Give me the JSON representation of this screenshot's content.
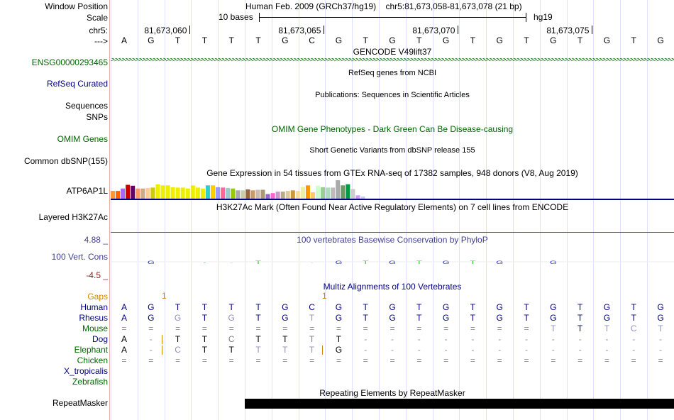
{
  "header": {
    "window_position_label": "Window Position",
    "window_position_value": "Human Feb. 2009 (GRCh37/hg19)    chr5:81,673,058-81,673,078 (21 bp)",
    "scale_label": "Scale",
    "scale_value": "10 bases",
    "scale_db": "hg19",
    "chrom_label": "chr5:",
    "ticks": [
      "81,673,060",
      "81,673,065",
      "81,673,070",
      "81,673,075"
    ],
    "strand_label": "--->",
    "bases": [
      "A",
      "G",
      "T",
      "T",
      "T",
      "T",
      "G",
      "C",
      "G",
      "T",
      "G",
      "T",
      "G",
      "T",
      "G",
      "T",
      "G",
      "T",
      "G",
      "T",
      "G"
    ]
  },
  "tracks": {
    "gencode": {
      "title": "GENCODE V49lift37",
      "gene_label": "ENSG00000293465"
    },
    "refseq": {
      "title": "RefSeq genes from NCBI",
      "label": "RefSeq Curated"
    },
    "publications": {
      "title": "Publications: Sequences in Scientific Articles",
      "label1": "Sequences",
      "label2": "SNPs"
    },
    "omim": {
      "title": "OMIM Gene Phenotypes - Dark Green Can Be Disease-causing",
      "label": "OMIM Genes"
    },
    "dbsnp": {
      "title": "Short Genetic Variants from dbSNP release 155",
      "label": "Common dbSNP(155)"
    },
    "gtex": {
      "title": "Gene Expression in 54 tissues from GTEx RNA-seq of 17382 samples, 948 donors (V8, Aug 2019)",
      "label": "ATP6AP1L",
      "bars": [
        {
          "c": "#ff9933",
          "h": 0.42
        },
        {
          "c": "#ff6600",
          "h": 0.42
        },
        {
          "c": "#aa66ff",
          "h": 0.55
        },
        {
          "c": "#cc0000",
          "h": 0.75
        },
        {
          "c": "#660066",
          "h": 0.7
        },
        {
          "c": "#ff9966",
          "h": 0.55
        },
        {
          "c": "#ccaa88",
          "h": 0.55
        },
        {
          "c": "#ffcc99",
          "h": 0.58
        },
        {
          "c": "#cccc00",
          "h": 0.6
        },
        {
          "c": "#eeee00",
          "h": 0.78
        },
        {
          "c": "#eeee00",
          "h": 0.72
        },
        {
          "c": "#eeee00",
          "h": 0.72
        },
        {
          "c": "#eeee00",
          "h": 0.62
        },
        {
          "c": "#eeee00",
          "h": 0.6
        },
        {
          "c": "#eeee00",
          "h": 0.6
        },
        {
          "c": "#eeee00",
          "h": 0.55
        },
        {
          "c": "#eeee00",
          "h": 0.72
        },
        {
          "c": "#eeee00",
          "h": 0.6
        },
        {
          "c": "#eeee00",
          "h": 0.55
        },
        {
          "c": "#33cccc",
          "h": 0.72
        },
        {
          "c": "#ffcc00",
          "h": 0.72
        },
        {
          "c": "#9999ff",
          "h": 0.62
        },
        {
          "c": "#ff6699",
          "h": 0.6
        },
        {
          "c": "#99cccc",
          "h": 0.58
        },
        {
          "c": "#99cc00",
          "h": 0.55
        },
        {
          "c": "#aaaaaa",
          "h": 0.45
        },
        {
          "c": "#ccccaa",
          "h": 0.45
        },
        {
          "c": "#996633",
          "h": 0.5
        },
        {
          "c": "#cc9966",
          "h": 0.45
        },
        {
          "c": "#ccbbaa",
          "h": 0.48
        },
        {
          "c": "#aa9977",
          "h": 0.48
        },
        {
          "c": "#9966cc",
          "h": 0.25
        },
        {
          "c": "#ff66cc",
          "h": 0.3
        },
        {
          "c": "#cc99cc",
          "h": 0.38
        },
        {
          "c": "#bbaa88",
          "h": 0.38
        },
        {
          "c": "#ddcc99",
          "h": 0.42
        },
        {
          "c": "#cc9933",
          "h": 0.45
        },
        {
          "c": "#ffdd99",
          "h": 0.42
        },
        {
          "c": "#eeeeaa",
          "h": 0.62
        },
        {
          "c": "#ff9900",
          "h": 0.72
        },
        {
          "c": "#ffcc66",
          "h": 0.35
        },
        {
          "c": "#ccffcc",
          "h": 0.7
        },
        {
          "c": "#99cc99",
          "h": 0.62
        },
        {
          "c": "#aaddbb",
          "h": 0.6
        },
        {
          "c": "#bbbbbb",
          "h": 0.6
        },
        {
          "c": "#aaaaaa",
          "h": 1.0
        },
        {
          "c": "#669966",
          "h": 0.72
        },
        {
          "c": "#009944",
          "h": 0.78
        },
        {
          "c": "#cccccc",
          "h": 0.52
        },
        {
          "c": "#cc99ff",
          "h": 0.18
        },
        {
          "c": "#ccccff",
          "h": 0.12
        }
      ]
    },
    "h3k27ac": {
      "title": "H3K27Ac Mark (Often Found Near Active Regulatory Elements) on 7 cell lines from ENCODE",
      "label": "Layered H3K27Ac"
    },
    "phylop": {
      "title": "100 vertebrates Basewise Conservation by PhyloP",
      "label": "100 Vert. Cons",
      "max": "4.88 _",
      "min": "-4.5 _"
    },
    "multiz": {
      "title": "Multiz Alignments of 100 Vertebrates",
      "gaps_label": "Gaps",
      "gap_marks": [
        "1",
        "1"
      ],
      "species": [
        {
          "name": "Human",
          "color": "#000080"
        },
        {
          "name": "Rhesus",
          "color": "#000080"
        },
        {
          "name": "Mouse",
          "color": "#006600"
        },
        {
          "name": "Dog",
          "color": "#000080"
        },
        {
          "name": "Elephant",
          "color": "#006600"
        },
        {
          "name": "Chicken",
          "color": "#006600"
        },
        {
          "name": "X_tropicalis",
          "color": "#000080"
        },
        {
          "name": "Zebrafish",
          "color": "#006600"
        }
      ],
      "rows": [
        [
          "A",
          "G",
          "T",
          "T",
          "T",
          "T",
          "G",
          "C",
          "G",
          "T",
          "G",
          "T",
          "G",
          "T",
          "G",
          "T",
          "G",
          "T",
          "G",
          "T",
          "G"
        ],
        [
          "A",
          "G",
          "G",
          "T",
          "G",
          "T",
          "G",
          "T",
          "G",
          "T",
          "G",
          "T",
          "G",
          "T",
          "G",
          "T",
          "G",
          "T",
          "G",
          "T",
          "G"
        ],
        [
          "=",
          "=",
          "=",
          "=",
          "=",
          "=",
          "=",
          "=",
          "=",
          "=",
          "=",
          "=",
          "=",
          "=",
          "=",
          "=",
          "T",
          "T",
          "T",
          "C",
          "T"
        ],
        [
          "A",
          "-",
          "T",
          "T",
          "C",
          "T",
          "T",
          "T",
          "T",
          "-",
          "-",
          "-",
          "-",
          "-",
          "-",
          "-",
          "-",
          "-",
          "-",
          "-",
          "-"
        ],
        [
          "A",
          "-",
          "C",
          "T",
          "T",
          "T",
          "T",
          "T",
          "G",
          "-",
          "-",
          "-",
          "-",
          "-",
          "-",
          "-",
          "-",
          "-",
          "-",
          "-",
          "-"
        ],
        [
          "=",
          "=",
          "=",
          "=",
          "=",
          "=",
          "=",
          "=",
          "=",
          "=",
          "=",
          "=",
          "=",
          "=",
          "=",
          "=",
          "=",
          "=",
          "=",
          "=",
          "="
        ]
      ]
    },
    "repeatmasker": {
      "title": "Repeating Elements by RepeatMasker",
      "label": "RepeatMasker"
    }
  }
}
